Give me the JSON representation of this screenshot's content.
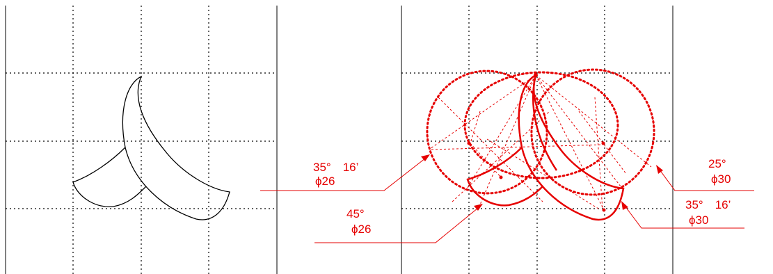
{
  "colors": {
    "background": "#ffffff",
    "frame": "#000000",
    "grid": "#000000",
    "shape": "#000000",
    "construction": "#e60000"
  },
  "grid": {
    "style": "dotted",
    "columns": 4,
    "rows": 4
  },
  "annotations": [
    {
      "id": "left-upper",
      "line1": "35°　16’",
      "line2": "ϕ26"
    },
    {
      "id": "left-lower",
      "line1": "45°",
      "line2": "ϕ26"
    },
    {
      "id": "right-upper",
      "line1": "25°",
      "line2": "ϕ30"
    },
    {
      "id": "right-lower",
      "line1": "35°　16’",
      "line2": "ϕ30"
    }
  ]
}
